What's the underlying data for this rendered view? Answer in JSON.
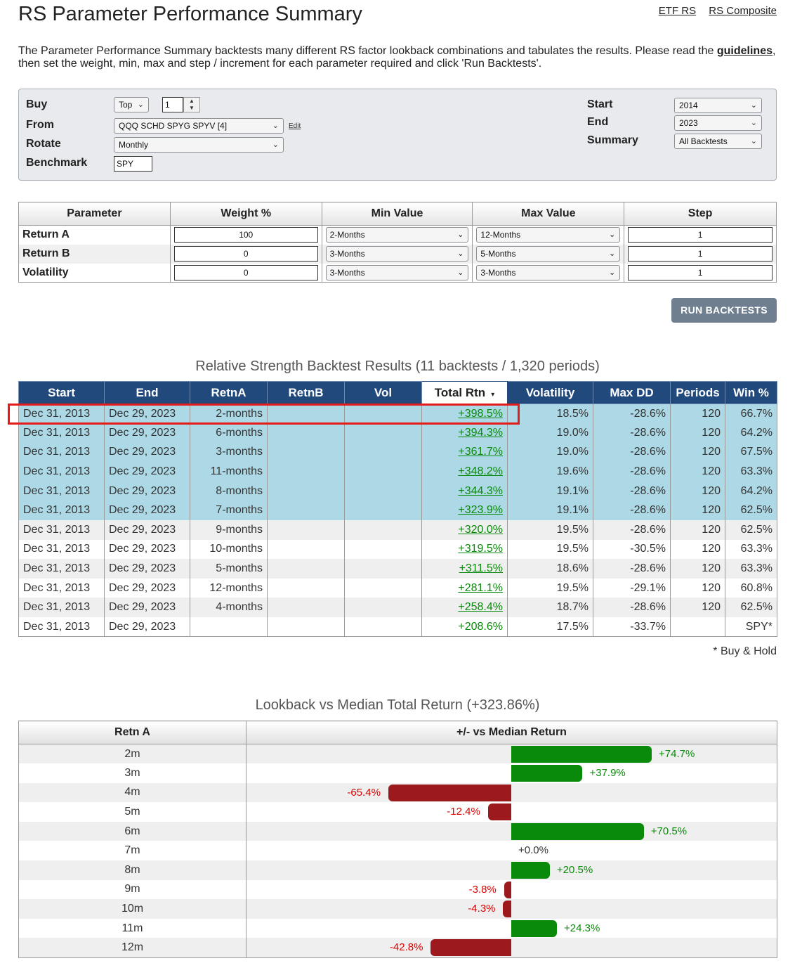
{
  "header": {
    "title": "RS Parameter Performance Summary",
    "links": [
      "ETF RS",
      "RS Composite"
    ]
  },
  "intro": {
    "text1": "The Parameter Performance Summary backtests many different RS factor lookback combinations and tabulates the results.  Please read the",
    "guidelines_link": "guidelines",
    "text2": ", then set the weight, min, max and step / increment for each parameter required and click 'Run Backtests'."
  },
  "settings": {
    "buy_label": "Buy",
    "buy_mode": "Top",
    "buy_count": "1",
    "from_label": "From",
    "from_value": "QQQ SCHD SPYG SPYV [4]",
    "edit_link": "Edit",
    "rotate_label": "Rotate",
    "rotate_value": "Monthly",
    "benchmark_label": "Benchmark",
    "benchmark_value": "SPY",
    "start_label": "Start",
    "start_value": "2014",
    "end_label": "End",
    "end_value": "2023",
    "summary_label": "Summary",
    "summary_value": "All Backtests"
  },
  "params": {
    "headers": [
      "Parameter",
      "Weight %",
      "Min Value",
      "Max Value",
      "Step"
    ],
    "rows": [
      {
        "name": "Return A",
        "weight": "100",
        "min": "2-Months",
        "max": "12-Months",
        "step": "1"
      },
      {
        "name": "Return B",
        "weight": "0",
        "min": "3-Months",
        "max": "5-Months",
        "step": "1"
      },
      {
        "name": "Volatility",
        "weight": "0",
        "min": "3-Months",
        "max": "3-Months",
        "step": "1"
      }
    ]
  },
  "run_button": "RUN BACKTESTS",
  "results": {
    "title": "Relative Strength Backtest Results (11 backtests / 1,320 periods)",
    "headers": [
      "Start",
      "End",
      "RetnA",
      "RetnB",
      "Vol",
      "Total Rtn",
      "Volatility",
      "Max DD",
      "Periods",
      "Win %"
    ],
    "sort_indicator": "▾",
    "rows": [
      {
        "start": "Dec 31, 2013",
        "end": "Dec 29, 2023",
        "retnA": "2-months",
        "retnB": "",
        "vol": "",
        "total": "+398.5%",
        "volatility": "18.5%",
        "maxdd": "-28.6%",
        "periods": "120",
        "win": "66.7%"
      },
      {
        "start": "Dec 31, 2013",
        "end": "Dec 29, 2023",
        "retnA": "6-months",
        "retnB": "",
        "vol": "",
        "total": "+394.3%",
        "volatility": "19.0%",
        "maxdd": "-28.6%",
        "periods": "120",
        "win": "64.2%"
      },
      {
        "start": "Dec 31, 2013",
        "end": "Dec 29, 2023",
        "retnA": "3-months",
        "retnB": "",
        "vol": "",
        "total": "+361.7%",
        "volatility": "19.0%",
        "maxdd": "-28.6%",
        "periods": "120",
        "win": "67.5%"
      },
      {
        "start": "Dec 31, 2013",
        "end": "Dec 29, 2023",
        "retnA": "11-months",
        "retnB": "",
        "vol": "",
        "total": "+348.2%",
        "volatility": "19.6%",
        "maxdd": "-28.6%",
        "periods": "120",
        "win": "63.3%"
      },
      {
        "start": "Dec 31, 2013",
        "end": "Dec 29, 2023",
        "retnA": "8-months",
        "retnB": "",
        "vol": "",
        "total": "+344.3%",
        "volatility": "19.1%",
        "maxdd": "-28.6%",
        "periods": "120",
        "win": "64.2%"
      },
      {
        "start": "Dec 31, 2013",
        "end": "Dec 29, 2023",
        "retnA": "7-months",
        "retnB": "",
        "vol": "",
        "total": "+323.9%",
        "volatility": "19.1%",
        "maxdd": "-28.6%",
        "periods": "120",
        "win": "62.5%"
      },
      {
        "start": "Dec 31, 2013",
        "end": "Dec 29, 2023",
        "retnA": "9-months",
        "retnB": "",
        "vol": "",
        "total": "+320.0%",
        "volatility": "19.5%",
        "maxdd": "-28.6%",
        "periods": "120",
        "win": "62.5%"
      },
      {
        "start": "Dec 31, 2013",
        "end": "Dec 29, 2023",
        "retnA": "10-months",
        "retnB": "",
        "vol": "",
        "total": "+319.5%",
        "volatility": "19.5%",
        "maxdd": "-30.5%",
        "periods": "120",
        "win": "63.3%"
      },
      {
        "start": "Dec 31, 2013",
        "end": "Dec 29, 2023",
        "retnA": "5-months",
        "retnB": "",
        "vol": "",
        "total": "+311.5%",
        "volatility": "18.6%",
        "maxdd": "-28.6%",
        "periods": "120",
        "win": "63.3%"
      },
      {
        "start": "Dec 31, 2013",
        "end": "Dec 29, 2023",
        "retnA": "12-months",
        "retnB": "",
        "vol": "",
        "total": "+281.1%",
        "volatility": "19.5%",
        "maxdd": "-29.1%",
        "periods": "120",
        "win": "60.8%"
      },
      {
        "start": "Dec 31, 2013",
        "end": "Dec 29, 2023",
        "retnA": "4-months",
        "retnB": "",
        "vol": "",
        "total": "+258.4%",
        "volatility": "18.7%",
        "maxdd": "-28.6%",
        "periods": "120",
        "win": "62.5%"
      },
      {
        "start": "Dec 31, 2013",
        "end": "Dec 29, 2023",
        "retnA": "",
        "retnB": "",
        "vol": "",
        "total": "+208.6%",
        "volatility": "17.5%",
        "maxdd": "-33.7%",
        "periods": "",
        "win": "SPY*"
      }
    ],
    "footnote": "* Buy & Hold"
  },
  "lookback": {
    "title": "Lookback vs Median Total Return (+323.86%)",
    "headers": [
      "Retn A",
      "+/- vs Median Return"
    ],
    "rows": [
      {
        "label": "2m",
        "value": 74.7,
        "text": "+74.7%"
      },
      {
        "label": "3m",
        "value": 37.9,
        "text": "+37.9%"
      },
      {
        "label": "4m",
        "value": -65.4,
        "text": "-65.4%"
      },
      {
        "label": "5m",
        "value": -12.4,
        "text": "-12.4%"
      },
      {
        "label": "6m",
        "value": 70.5,
        "text": "+70.5%"
      },
      {
        "label": "7m",
        "value": 0.0,
        "text": "+0.0%"
      },
      {
        "label": "8m",
        "value": 20.5,
        "text": "+20.5%"
      },
      {
        "label": "9m",
        "value": -3.8,
        "text": "-3.8%"
      },
      {
        "label": "10m",
        "value": -4.3,
        "text": "-4.3%"
      },
      {
        "label": "11m",
        "value": 24.3,
        "text": "+24.3%"
      },
      {
        "label": "12m",
        "value": -42.8,
        "text": "-42.8%"
      }
    ],
    "colors": {
      "positive": "#0a8a0a",
      "negative": "#9c1a1e"
    }
  }
}
